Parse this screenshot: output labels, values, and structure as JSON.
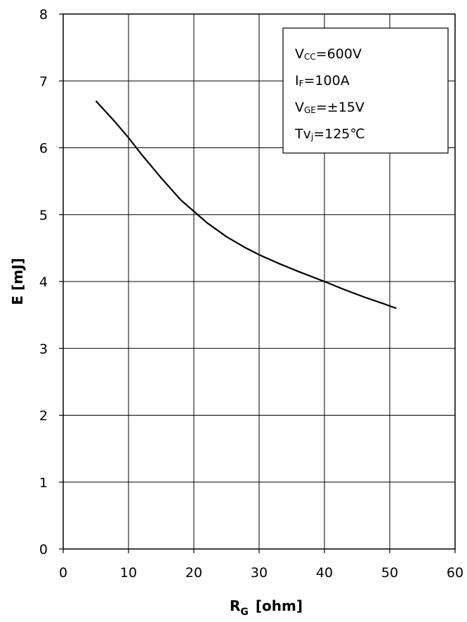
{
  "chart_data": {
    "type": "line",
    "xlabel": "R",
    "xlabel_sub": "G",
    "xlabel_unit": "[ohm]",
    "ylabel": "E  [mJ]",
    "xlim": [
      0,
      60
    ],
    "ylim": [
      0,
      8
    ],
    "xticks": [
      "0",
      "10",
      "20",
      "30",
      "40",
      "50",
      "60"
    ],
    "yticks": [
      "0",
      "1",
      "2",
      "3",
      "4",
      "5",
      "6",
      "7",
      "8"
    ],
    "grid": true,
    "series": [
      {
        "x": [
          5,
          8,
          10,
          12,
          15,
          18,
          20,
          22,
          25,
          28,
          30,
          33,
          36,
          40,
          43,
          46,
          49,
          51
        ],
        "y": [
          6.7,
          6.38,
          6.15,
          5.9,
          5.55,
          5.22,
          5.05,
          4.88,
          4.67,
          4.5,
          4.4,
          4.27,
          4.15,
          4.0,
          3.88,
          3.77,
          3.67,
          3.6
        ]
      }
    ],
    "legend_placement": "top-right",
    "conditions": [
      {
        "main": "V",
        "sub": "CC",
        "rest": "=600V"
      },
      {
        "main": "I",
        "sub": "F",
        "rest": "=100A"
      },
      {
        "main": "V",
        "sub": "GE",
        "rest": "=±15V"
      },
      {
        "main": "Tv",
        "sub": "j",
        "rest": "=125℃"
      }
    ],
    "colors": {
      "line": "#000000",
      "grid": "#000000",
      "background": "#ffffff"
    }
  }
}
